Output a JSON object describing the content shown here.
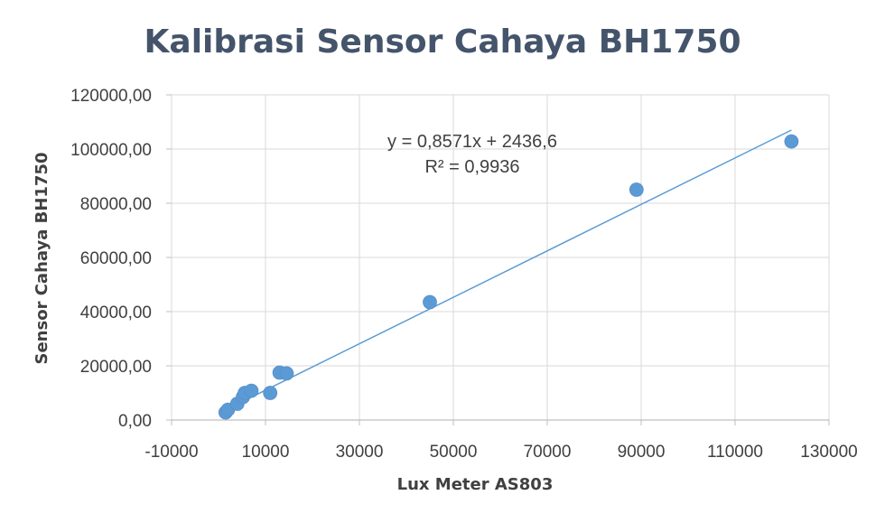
{
  "chart_data": {
    "type": "scatter",
    "title": "Kalibrasi Sensor Cahaya BH1750",
    "xlabel": "Lux Meter AS803",
    "ylabel": "Sensor Cahaya BH1750",
    "xlim": [
      -10000,
      130000
    ],
    "ylim": [
      0,
      120000
    ],
    "x_ticks": [
      -10000,
      10000,
      30000,
      50000,
      70000,
      90000,
      110000,
      130000
    ],
    "x_tick_labels": [
      "-10000",
      "10000",
      "30000",
      "50000",
      "70000",
      "90000",
      "110000",
      "130000"
    ],
    "y_ticks": [
      0,
      20000,
      40000,
      60000,
      80000,
      100000,
      120000
    ],
    "y_tick_labels": [
      "0,00",
      "20000,00",
      "40000,00",
      "60000,00",
      "80000,00",
      "100000,00",
      "120000,00"
    ],
    "grid": true,
    "series": [
      {
        "points": [
          {
            "x": 1500,
            "y": 2800
          },
          {
            "x": 2000,
            "y": 3800
          },
          {
            "x": 4000,
            "y": 6000
          },
          {
            "x": 5200,
            "y": 8500
          },
          {
            "x": 5600,
            "y": 10000
          },
          {
            "x": 7000,
            "y": 10800
          },
          {
            "x": 11000,
            "y": 10000
          },
          {
            "x": 13000,
            "y": 17500
          },
          {
            "x": 14500,
            "y": 17200
          },
          {
            "x": 45000,
            "y": 43500
          },
          {
            "x": 89000,
            "y": 85000
          },
          {
            "x": 122000,
            "y": 102800
          }
        ],
        "color": "#5b9bd5"
      }
    ],
    "trendline": {
      "type": "linear",
      "slope": 0.8571,
      "intercept": 2436.6,
      "x_range": [
        1500,
        122000
      ],
      "color": "#5b9bd5",
      "equation": "y = 0,8571x + 2436,6",
      "r_squared": "R² = 0,9936"
    },
    "colors": {
      "text": "#404040",
      "title": "#44546a",
      "grid": "#d9d9d9",
      "axis": "#bfbfbf"
    }
  }
}
